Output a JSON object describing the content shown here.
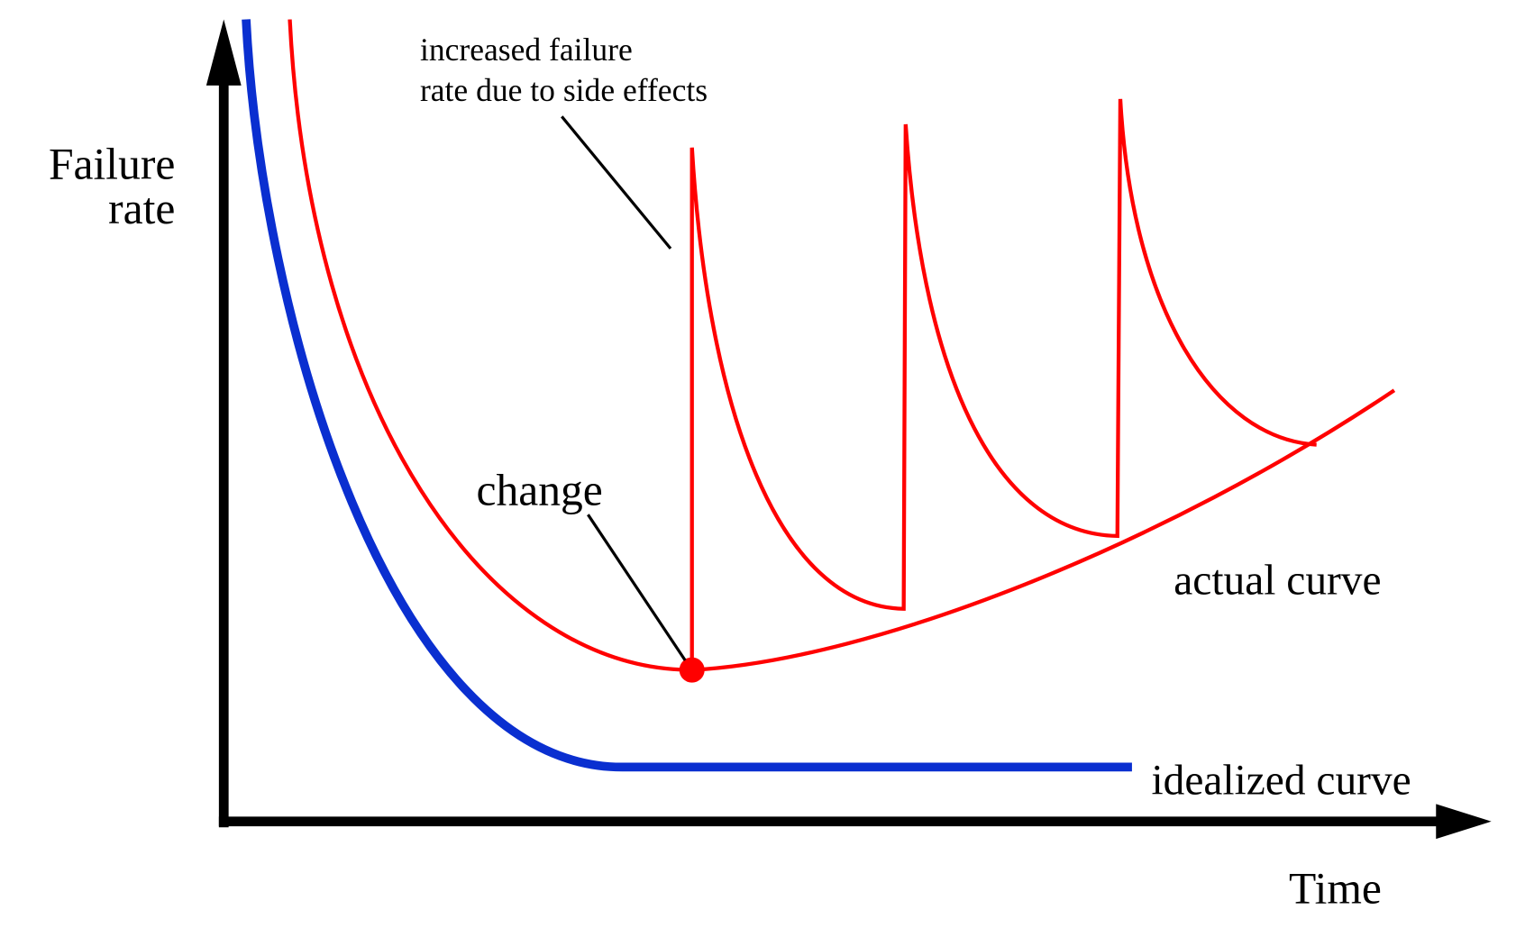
{
  "y_axis_label": [
    "Failure",
    "rate"
  ],
  "x_axis_label": "Time",
  "annotations": {
    "side_effects": [
      "increased failure",
      "rate due to side effects"
    ],
    "change": "change"
  },
  "curves": {
    "actual": "actual curve",
    "idealized": "idealized curve"
  }
}
